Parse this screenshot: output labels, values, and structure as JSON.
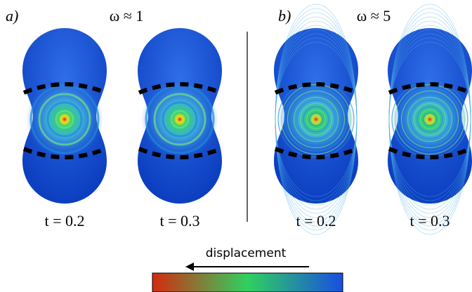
{
  "panels": [
    {
      "label": "a)",
      "omega": "ω ≈ 1",
      "times": [
        "t = 0.2",
        "t = 0.3"
      ]
    },
    {
      "label": "b)",
      "omega": "ω ≈ 5",
      "times": [
        "t = 0.2",
        "t = 0.3"
      ]
    }
  ],
  "colorbar": {
    "label": "displacement"
  }
}
